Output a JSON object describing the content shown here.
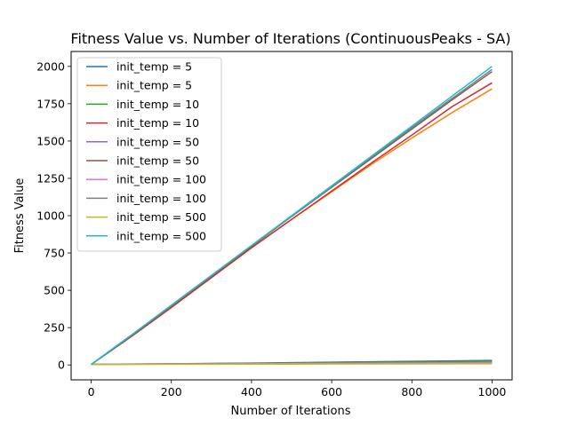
{
  "chart_data": {
    "type": "line",
    "title": "Fitness Value vs. Number of Iterations (ContinuousPeaks - SA)",
    "xlabel": "Number of Iterations",
    "ylabel": "Fitness Value",
    "xlim": [
      -50,
      1050
    ],
    "ylim": [
      -100,
      2100
    ],
    "xticks": [
      0,
      200,
      400,
      600,
      800,
      1000
    ],
    "yticks": [
      0,
      250,
      500,
      750,
      1000,
      1250,
      1500,
      1750,
      2000
    ],
    "grid": false,
    "legend_position": "top-left",
    "series": [
      {
        "name": "init_temp = 5",
        "color": "#1f77b4",
        "x": [
          0,
          200,
          400,
          600,
          800,
          1000
        ],
        "y": [
          5,
          8,
          12,
          18,
          24,
          30
        ]
      },
      {
        "name": "init_temp = 5",
        "color": "#ff7f0e",
        "x": [
          0,
          100,
          200,
          300,
          400,
          500,
          600,
          700,
          800,
          900,
          1000
        ],
        "y": [
          3,
          190,
          385,
          585,
          785,
          975,
          1160,
          1345,
          1520,
          1690,
          1850
        ]
      },
      {
        "name": "init_temp = 10",
        "color": "#2ca02c",
        "x": [
          0,
          200,
          400,
          600,
          800,
          1000
        ],
        "y": [
          4,
          7,
          11,
          16,
          22,
          28
        ]
      },
      {
        "name": "init_temp = 10",
        "color": "#d62728",
        "x": [
          0,
          100,
          200,
          300,
          400,
          500,
          600,
          700,
          800,
          900,
          1000
        ],
        "y": [
          3,
          190,
          385,
          585,
          785,
          975,
          1165,
          1355,
          1540,
          1730,
          1890
        ]
      },
      {
        "name": "init_temp = 50",
        "color": "#9467bd",
        "x": [
          0,
          200,
          400,
          600,
          800,
          1000
        ],
        "y": [
          4,
          6,
          9,
          12,
          16,
          20
        ]
      },
      {
        "name": "init_temp = 50",
        "color": "#8c564b",
        "x": [
          0,
          100,
          200,
          300,
          400,
          500,
          600,
          700,
          800,
          900,
          1000
        ],
        "y": [
          3,
          195,
          395,
          595,
          795,
          995,
          1190,
          1385,
          1580,
          1775,
          1965
        ]
      },
      {
        "name": "init_temp = 100",
        "color": "#e377c2",
        "x": [
          0,
          200,
          400,
          600,
          800,
          1000
        ],
        "y": [
          4,
          6,
          8,
          10,
          12,
          14
        ]
      },
      {
        "name": "init_temp = 100",
        "color": "#7f7f7f",
        "x": [
          0,
          100,
          200,
          300,
          400,
          500,
          600,
          700,
          800,
          900,
          1000
        ],
        "y": [
          3,
          198,
          398,
          598,
          798,
          998,
          1195,
          1395,
          1590,
          1785,
          1980
        ]
      },
      {
        "name": "init_temp = 500",
        "color": "#bcbd22",
        "x": [
          0,
          200,
          400,
          600,
          800,
          1000
        ],
        "y": [
          3,
          4,
          5,
          6,
          7,
          8
        ]
      },
      {
        "name": "init_temp = 500",
        "color": "#17becf",
        "x": [
          0,
          100,
          200,
          300,
          400,
          500,
          600,
          700,
          800,
          900,
          1000
        ],
        "y": [
          3,
          200,
          400,
          600,
          800,
          1000,
          1200,
          1400,
          1600,
          1800,
          2000
        ]
      }
    ]
  }
}
